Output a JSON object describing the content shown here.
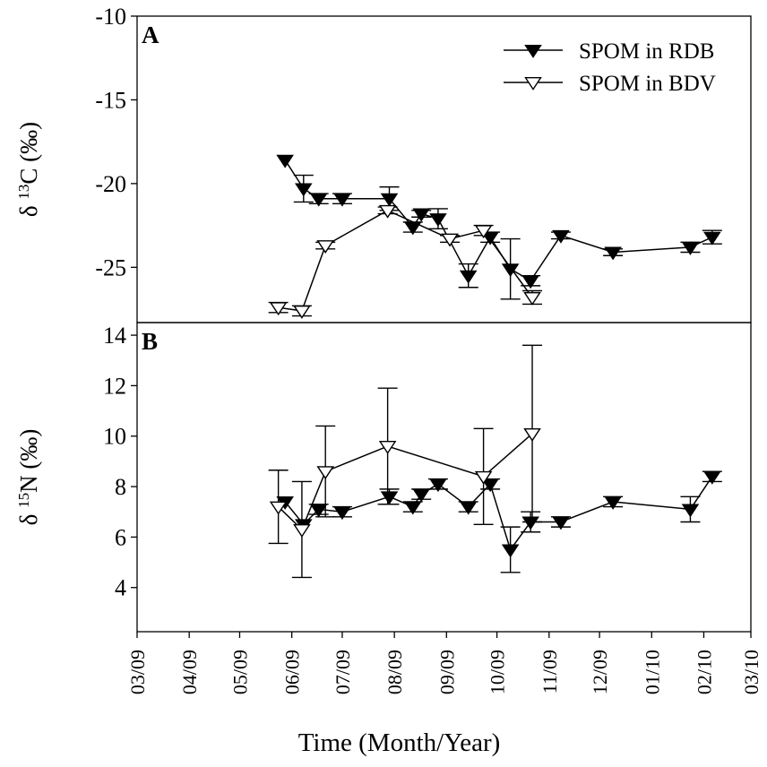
{
  "chart_data": [
    {
      "panel": "A",
      "type": "line",
      "ylabel_sup": "13",
      "ylabel_main": "C (‰)",
      "ylabel_symbol": "δ",
      "ylim": [
        -28.3,
        -10
      ],
      "yticks": [
        -10,
        -15,
        -20,
        -25
      ],
      "legend": {
        "placement": "top-right",
        "entries": [
          "SPOM in RDB",
          "SPOM in BDV"
        ]
      },
      "series": [
        {
          "name": "SPOM in RDB",
          "marker": "filled-down-triangle",
          "points": [
            {
              "x": "05/28/09",
              "y": -18.6
            },
            {
              "x": "06/08/09",
              "y": -20.3,
              "err": 0.8
            },
            {
              "x": "06/17/09",
              "y": -20.9,
              "err": 0.3
            },
            {
              "x": "07/01/09",
              "y": -20.9,
              "err": 0.3
            },
            {
              "x": "07/29/09",
              "y": -20.9,
              "err": 0.7
            },
            {
              "x": "08/12/09",
              "y": -22.6,
              "err": 0.3
            },
            {
              "x": "08/17/09",
              "y": -21.8,
              "err": 0.2
            },
            {
              "x": "08/27/09",
              "y": -22.1,
              "err": 0.6
            },
            {
              "x": "09/14/09",
              "y": -25.5,
              "err": 0.7
            },
            {
              "x": "09/27/09",
              "y": -23.2,
              "err": 0.3
            },
            {
              "x": "10/09/09",
              "y": -25.1,
              "err": 1.8
            },
            {
              "x": "10/21/09",
              "y": -25.8,
              "err": 0.3
            },
            {
              "x": "11/08/09",
              "y": -23.1,
              "err": 0.2
            },
            {
              "x": "12/09/09",
              "y": -24.1,
              "err": 0.2
            },
            {
              "x": "01/24/10",
              "y": -23.8,
              "err": 0.3
            },
            {
              "x": "02/06/10",
              "y": -23.2,
              "err": 0.4
            }
          ]
        },
        {
          "name": "SPOM in BDV",
          "marker": "open-down-triangle",
          "points": [
            {
              "x": "05/24/09",
              "y": -27.4,
              "err": 0.3
            },
            {
              "x": "06/07/09",
              "y": -27.6,
              "err": 0.3
            },
            {
              "x": "06/21/09",
              "y": -23.7,
              "err": 0.2
            },
            {
              "x": "07/28/09",
              "y": -21.6,
              "err": 0.2
            },
            {
              "x": "09/03/09",
              "y": -23.3,
              "err": 0.2
            },
            {
              "x": "09/23/09",
              "y": -22.8,
              "err": 0.3
            },
            {
              "x": "10/22/09",
              "y": -26.8,
              "err": 0.4
            }
          ]
        }
      ]
    },
    {
      "panel": "B",
      "type": "line",
      "ylabel_sup": "15",
      "ylabel_main": "N (‰)",
      "ylabel_symbol": "δ",
      "ylim": [
        2.25,
        14.5
      ],
      "yticks": [
        4,
        6,
        8,
        10,
        12,
        14
      ],
      "xlabel": "Time (Month/Year)",
      "xticks": [
        "03/09",
        "04/09",
        "05/09",
        "06/09",
        "07/09",
        "08/09",
        "09/09",
        "10/09",
        "11/09",
        "12/09",
        "01/10",
        "02/10",
        "03/10"
      ],
      "series": [
        {
          "name": "SPOM in RDB",
          "marker": "filled-down-triangle",
          "points": [
            {
              "x": "05/28/09",
              "y": 7.4
            },
            {
              "x": "06/08/09",
              "y": 6.5
            },
            {
              "x": "06/17/09",
              "y": 7.1,
              "err": 0.2
            },
            {
              "x": "07/01/09",
              "y": 7.0,
              "err": 0.2
            },
            {
              "x": "07/29/09",
              "y": 7.6,
              "err": 0.3
            },
            {
              "x": "08/12/09",
              "y": 7.2,
              "err": 0.2
            },
            {
              "x": "08/17/09",
              "y": 7.7,
              "err": 0.2
            },
            {
              "x": "08/27/09",
              "y": 8.1,
              "err": 0.2
            },
            {
              "x": "09/14/09",
              "y": 7.2,
              "err": 0.2
            },
            {
              "x": "09/27/09",
              "y": 8.1,
              "err": 0.2
            },
            {
              "x": "10/09/09",
              "y": 5.5,
              "err": 0.9
            },
            {
              "x": "10/21/09",
              "y": 6.6,
              "err": 0.4
            },
            {
              "x": "11/08/09",
              "y": 6.6,
              "err": 0.2
            },
            {
              "x": "12/09/09",
              "y": 7.4,
              "err": 0.2
            },
            {
              "x": "01/24/10",
              "y": 7.1,
              "err": 0.5
            },
            {
              "x": "02/06/10",
              "y": 8.4,
              "err": 0.2
            }
          ]
        },
        {
          "name": "SPOM in BDV",
          "marker": "open-down-triangle",
          "points": [
            {
              "x": "05/24/09",
              "y": 7.2,
              "err": 1.45
            },
            {
              "x": "06/07/09",
              "y": 6.3,
              "err": 1.9
            },
            {
              "x": "06/21/09",
              "y": 8.6,
              "err": 1.8
            },
            {
              "x": "07/28/09",
              "y": 9.6,
              "err": 2.3
            },
            {
              "x": "09/23/09",
              "y": 8.4,
              "err": 1.9
            },
            {
              "x": "10/22/09",
              "y": 10.1,
              "err": 3.5
            }
          ]
        }
      ]
    }
  ]
}
